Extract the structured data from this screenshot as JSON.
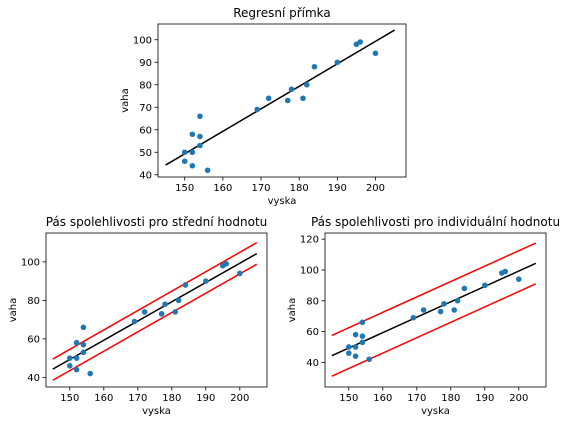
{
  "colors": {
    "points": "#1f77b4",
    "fit_line": "#000000",
    "band": "#ff0000"
  },
  "chart_data": [
    {
      "type": "scatter",
      "title": "Regresní přímka",
      "xlabel": "vyska",
      "ylabel": "vaha",
      "xlim": [
        143,
        208
      ],
      "ylim": [
        39,
        107
      ],
      "xticks": [
        150,
        160,
        170,
        180,
        190,
        200
      ],
      "yticks": [
        40,
        50,
        60,
        70,
        80,
        90,
        100
      ],
      "grid": false,
      "series": [
        {
          "kind": "points",
          "x": [
            150,
            150,
            152,
            152,
            152,
            154,
            154,
            154,
            156,
            169,
            172,
            177,
            178,
            181,
            182,
            184,
            190,
            195,
            196,
            200
          ],
          "y": [
            46,
            50,
            44,
            50,
            58,
            53,
            57,
            66,
            42,
            69,
            74,
            73,
            78,
            74,
            80,
            88,
            90,
            98,
            99,
            94
          ]
        },
        {
          "kind": "line",
          "role": "fit",
          "x": [
            145,
            205
          ],
          "y": [
            44.3,
            104.3
          ]
        }
      ]
    },
    {
      "type": "scatter",
      "title": "Pás spolehlivosti pro střední hodnotu",
      "xlabel": "vyska",
      "ylabel": "vaha",
      "xlim": [
        143,
        208
      ],
      "ylim": [
        35,
        115
      ],
      "xticks": [
        150,
        160,
        170,
        180,
        190,
        200
      ],
      "yticks": [
        40,
        60,
        80,
        100
      ],
      "grid": false,
      "series": [
        {
          "kind": "points",
          "x": [
            150,
            150,
            152,
            152,
            152,
            154,
            154,
            154,
            156,
            169,
            172,
            177,
            178,
            181,
            182,
            184,
            190,
            195,
            196,
            200
          ],
          "y": [
            46,
            50,
            44,
            50,
            58,
            53,
            57,
            66,
            42,
            69,
            74,
            73,
            78,
            74,
            80,
            88,
            90,
            98,
            99,
            94
          ]
        },
        {
          "kind": "line",
          "role": "fit",
          "x": [
            145,
            205
          ],
          "y": [
            44.3,
            104.3
          ]
        },
        {
          "kind": "line",
          "role": "upper",
          "x": [
            145,
            205
          ],
          "y": [
            49.5,
            110.0
          ]
        },
        {
          "kind": "line",
          "role": "lower",
          "x": [
            145,
            205
          ],
          "y": [
            38.5,
            98.8
          ]
        }
      ]
    },
    {
      "type": "scatter",
      "title": "Pás spolehlivosti pro individuální hodnotu",
      "xlabel": "vyska",
      "ylabel": "vaha",
      "xlim": [
        143,
        208
      ],
      "ylim": [
        24,
        124
      ],
      "xticks": [
        150,
        160,
        170,
        180,
        190,
        200
      ],
      "yticks": [
        40,
        60,
        80,
        100,
        120
      ],
      "grid": false,
      "series": [
        {
          "kind": "points",
          "x": [
            150,
            150,
            152,
            152,
            152,
            154,
            154,
            154,
            156,
            169,
            172,
            177,
            178,
            181,
            182,
            184,
            190,
            195,
            196,
            200
          ],
          "y": [
            46,
            50,
            44,
            50,
            58,
            53,
            57,
            66,
            42,
            69,
            74,
            73,
            78,
            74,
            80,
            88,
            90,
            98,
            99,
            94
          ]
        },
        {
          "kind": "line",
          "role": "fit",
          "x": [
            145,
            205
          ],
          "y": [
            44.3,
            104.3
          ]
        },
        {
          "kind": "line",
          "role": "upper",
          "x": [
            145,
            205
          ],
          "y": [
            57.5,
            117.5
          ]
        },
        {
          "kind": "line",
          "role": "lower",
          "x": [
            145,
            205
          ],
          "y": [
            31.0,
            91.0
          ]
        }
      ]
    }
  ]
}
